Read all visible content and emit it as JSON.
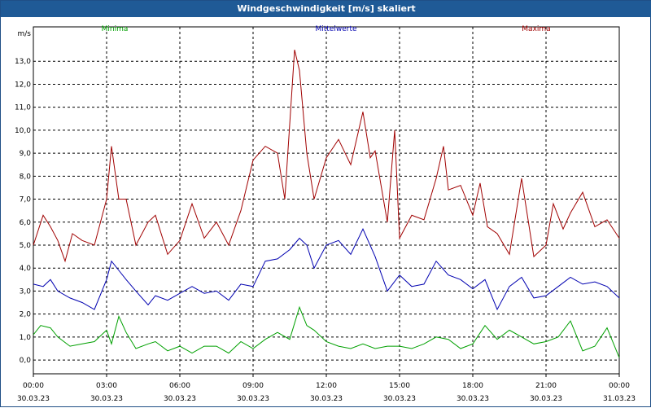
{
  "window": {
    "title": "Windgeschwindigkeit [m/s] skaliert"
  },
  "chart_data": {
    "type": "line",
    "title": "Windgeschwindigkeit [m/s] skaliert",
    "ylabel": "m/s",
    "ylim": [
      -0.6,
      14.0
    ],
    "yticks": [
      "0,0",
      "1,0",
      "2,0",
      "3,0",
      "4,0",
      "5,0",
      "6,0",
      "7,0",
      "8,0",
      "9,0",
      "10,0",
      "11,0",
      "12,0",
      "13,0"
    ],
    "x_range_hours": [
      0,
      24
    ],
    "xticks": [
      {
        "time": "00:00",
        "date": "30.03.23"
      },
      {
        "time": "03:00",
        "date": "30.03.23"
      },
      {
        "time": "06:00",
        "date": "30.03.23"
      },
      {
        "time": "09:00",
        "date": "30.03.23"
      },
      {
        "time": "12:00",
        "date": "30.03.23"
      },
      {
        "time": "15:00",
        "date": "30.03.23"
      },
      {
        "time": "18:00",
        "date": "30.03.23"
      },
      {
        "time": "21:00",
        "date": "30.03.23"
      },
      {
        "time": "00:00",
        "date": "31.03.23"
      }
    ],
    "grid": true,
    "legend_position": "top",
    "series": [
      {
        "name": "Minima",
        "color": "#00a000",
        "points": [
          [
            0.0,
            1.1
          ],
          [
            0.3,
            1.5
          ],
          [
            0.7,
            1.4
          ],
          [
            1.0,
            1.0
          ],
          [
            1.5,
            0.6
          ],
          [
            2.0,
            0.7
          ],
          [
            2.5,
            0.8
          ],
          [
            3.0,
            1.3
          ],
          [
            3.2,
            0.7
          ],
          [
            3.5,
            1.9
          ],
          [
            3.8,
            1.2
          ],
          [
            4.2,
            0.5
          ],
          [
            4.7,
            0.7
          ],
          [
            5.0,
            0.8
          ],
          [
            5.5,
            0.4
          ],
          [
            6.0,
            0.6
          ],
          [
            6.5,
            0.3
          ],
          [
            7.0,
            0.6
          ],
          [
            7.5,
            0.6
          ],
          [
            8.0,
            0.3
          ],
          [
            8.5,
            0.8
          ],
          [
            9.0,
            0.5
          ],
          [
            9.5,
            0.9
          ],
          [
            10.0,
            1.2
          ],
          [
            10.5,
            0.9
          ],
          [
            10.9,
            2.3
          ],
          [
            11.2,
            1.5
          ],
          [
            11.5,
            1.3
          ],
          [
            12.0,
            0.8
          ],
          [
            12.5,
            0.6
          ],
          [
            13.0,
            0.5
          ],
          [
            13.5,
            0.7
          ],
          [
            14.0,
            0.5
          ],
          [
            14.5,
            0.6
          ],
          [
            15.0,
            0.6
          ],
          [
            15.5,
            0.5
          ],
          [
            16.0,
            0.7
          ],
          [
            16.5,
            1.0
          ],
          [
            17.0,
            0.9
          ],
          [
            17.5,
            0.5
          ],
          [
            18.0,
            0.7
          ],
          [
            18.5,
            1.5
          ],
          [
            19.0,
            0.9
          ],
          [
            19.5,
            1.3
          ],
          [
            20.0,
            1.0
          ],
          [
            20.5,
            0.7
          ],
          [
            21.0,
            0.8
          ],
          [
            21.5,
            1.0
          ],
          [
            22.0,
            1.7
          ],
          [
            22.5,
            0.4
          ],
          [
            23.0,
            0.6
          ],
          [
            23.5,
            1.4
          ],
          [
            24.0,
            0.1
          ]
        ]
      },
      {
        "name": "Mittelwerte",
        "color": "#0000b0",
        "points": [
          [
            0.0,
            3.3
          ],
          [
            0.4,
            3.2
          ],
          [
            0.7,
            3.5
          ],
          [
            1.0,
            3.0
          ],
          [
            1.5,
            2.7
          ],
          [
            2.0,
            2.5
          ],
          [
            2.5,
            2.2
          ],
          [
            3.0,
            3.5
          ],
          [
            3.2,
            4.3
          ],
          [
            3.5,
            3.9
          ],
          [
            3.8,
            3.5
          ],
          [
            4.2,
            3.0
          ],
          [
            4.7,
            2.4
          ],
          [
            5.0,
            2.8
          ],
          [
            5.5,
            2.6
          ],
          [
            6.0,
            2.9
          ],
          [
            6.5,
            3.2
          ],
          [
            7.0,
            2.9
          ],
          [
            7.5,
            3.0
          ],
          [
            8.0,
            2.6
          ],
          [
            8.5,
            3.3
          ],
          [
            9.0,
            3.2
          ],
          [
            9.5,
            4.3
          ],
          [
            10.0,
            4.4
          ],
          [
            10.5,
            4.8
          ],
          [
            10.9,
            5.3
          ],
          [
            11.2,
            5.0
          ],
          [
            11.5,
            4.0
          ],
          [
            12.0,
            5.0
          ],
          [
            12.5,
            5.2
          ],
          [
            13.0,
            4.6
          ],
          [
            13.5,
            5.7
          ],
          [
            14.0,
            4.5
          ],
          [
            14.5,
            3.0
          ],
          [
            15.0,
            3.7
          ],
          [
            15.5,
            3.2
          ],
          [
            16.0,
            3.3
          ],
          [
            16.5,
            4.3
          ],
          [
            17.0,
            3.7
          ],
          [
            17.5,
            3.5
          ],
          [
            18.0,
            3.1
          ],
          [
            18.5,
            3.5
          ],
          [
            19.0,
            2.2
          ],
          [
            19.5,
            3.2
          ],
          [
            20.0,
            3.6
          ],
          [
            20.5,
            2.7
          ],
          [
            21.0,
            2.8
          ],
          [
            21.5,
            3.2
          ],
          [
            22.0,
            3.6
          ],
          [
            22.5,
            3.3
          ],
          [
            23.0,
            3.4
          ],
          [
            23.5,
            3.2
          ],
          [
            24.0,
            2.7
          ]
        ]
      },
      {
        "name": "Maxima",
        "color": "#a00000",
        "points": [
          [
            0.0,
            5.0
          ],
          [
            0.4,
            6.3
          ],
          [
            0.7,
            5.8
          ],
          [
            1.0,
            5.2
          ],
          [
            1.3,
            4.3
          ],
          [
            1.6,
            5.5
          ],
          [
            2.0,
            5.2
          ],
          [
            2.5,
            5.0
          ],
          [
            3.0,
            7.0
          ],
          [
            3.2,
            9.3
          ],
          [
            3.5,
            7.0
          ],
          [
            3.8,
            7.0
          ],
          [
            4.2,
            5.0
          ],
          [
            4.7,
            6.0
          ],
          [
            5.0,
            6.3
          ],
          [
            5.5,
            4.6
          ],
          [
            6.0,
            5.2
          ],
          [
            6.5,
            6.8
          ],
          [
            7.0,
            5.3
          ],
          [
            7.5,
            6.0
          ],
          [
            8.0,
            5.0
          ],
          [
            8.5,
            6.5
          ],
          [
            9.0,
            8.7
          ],
          [
            9.5,
            9.3
          ],
          [
            10.0,
            9.0
          ],
          [
            10.3,
            7.0
          ],
          [
            10.7,
            13.5
          ],
          [
            10.9,
            12.6
          ],
          [
            11.2,
            9.0
          ],
          [
            11.5,
            7.0
          ],
          [
            12.0,
            8.8
          ],
          [
            12.5,
            9.6
          ],
          [
            13.0,
            8.5
          ],
          [
            13.5,
            10.8
          ],
          [
            13.8,
            8.8
          ],
          [
            14.0,
            9.1
          ],
          [
            14.5,
            6.0
          ],
          [
            14.8,
            10.0
          ],
          [
            15.0,
            5.3
          ],
          [
            15.5,
            6.3
          ],
          [
            16.0,
            6.1
          ],
          [
            16.5,
            7.9
          ],
          [
            16.8,
            9.3
          ],
          [
            17.0,
            7.4
          ],
          [
            17.5,
            7.6
          ],
          [
            18.0,
            6.3
          ],
          [
            18.3,
            7.7
          ],
          [
            18.6,
            5.8
          ],
          [
            19.0,
            5.5
          ],
          [
            19.5,
            4.6
          ],
          [
            20.0,
            7.9
          ],
          [
            20.5,
            4.5
          ],
          [
            21.0,
            5.0
          ],
          [
            21.3,
            6.8
          ],
          [
            21.7,
            5.7
          ],
          [
            22.0,
            6.4
          ],
          [
            22.5,
            7.3
          ],
          [
            23.0,
            5.8
          ],
          [
            23.5,
            6.1
          ],
          [
            24.0,
            5.3
          ]
        ]
      }
    ]
  }
}
